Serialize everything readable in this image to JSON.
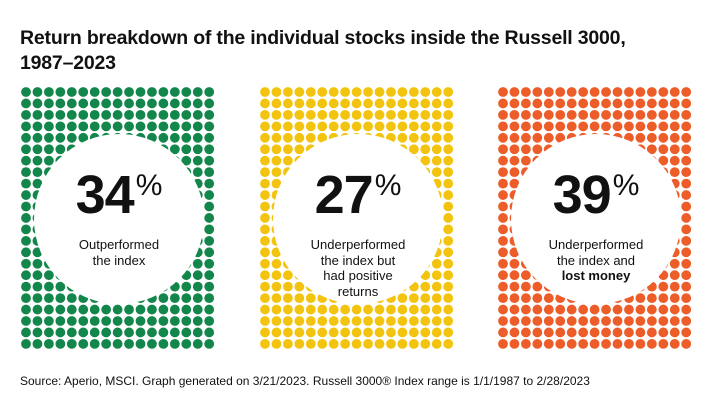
{
  "title_line1": "Return breakdown of the individual stocks inside the Russell 3000,",
  "title_line2": "1987–2023",
  "chart_data": {
    "type": "dot-matrix",
    "title": "Return breakdown of the individual stocks inside the Russell 3000, 1987–2023",
    "unit": "%",
    "categories": [
      {
        "value": 34,
        "label_lines": [
          "Outperformed",
          "the index"
        ],
        "bold_line": null,
        "color": "#13874b"
      },
      {
        "value": 27,
        "label_lines": [
          "Underperformed",
          "the index but",
          "had positive",
          "returns"
        ],
        "bold_line": null,
        "color": "#f3c40f"
      },
      {
        "value": 39,
        "label_lines": [
          "Underperformed",
          "the index and"
        ],
        "bold_line": "lost money",
        "color": "#ec5d2a"
      }
    ]
  },
  "source": "Source: Aperio, MSCI. Graph generated on 3/21/2023. Russell 3000® Index range is 1/1/1987 to 2/28/2023"
}
